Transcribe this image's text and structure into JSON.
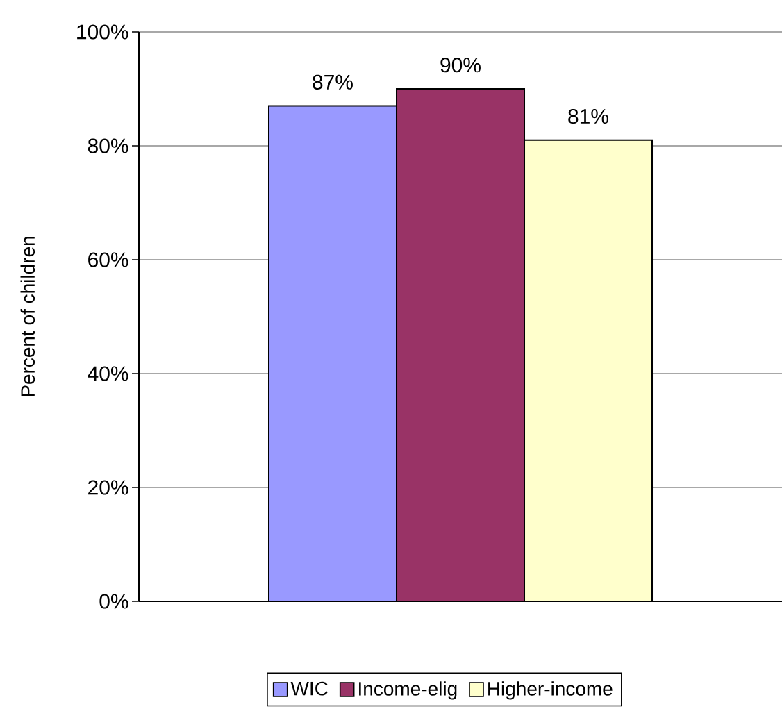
{
  "chart_data": {
    "type": "bar",
    "ylabel": "Percent of children",
    "categories": [
      null
    ],
    "series": [
      {
        "name": "WIC",
        "color": "#9999ff",
        "values": [
          87
        ],
        "value_labels": [
          "87%"
        ]
      },
      {
        "name": "Income-elig",
        "color": "#993366",
        "values": [
          90
        ],
        "value_labels": [
          "90%"
        ]
      },
      {
        "name": "Higher-income",
        "color": "#ffffcc",
        "values": [
          81
        ],
        "value_labels": [
          "81%"
        ]
      }
    ],
    "ylim": [
      0,
      100
    ],
    "yticks": [
      {
        "value": 0,
        "label": "0%"
      },
      {
        "value": 20,
        "label": "20%"
      },
      {
        "value": 40,
        "label": "40%"
      },
      {
        "value": 60,
        "label": "60%"
      },
      {
        "value": 80,
        "label": "80%"
      },
      {
        "value": 100,
        "label": "100%"
      }
    ],
    "grid": "y",
    "legend": "bottom",
    "tick_labels": "y"
  }
}
